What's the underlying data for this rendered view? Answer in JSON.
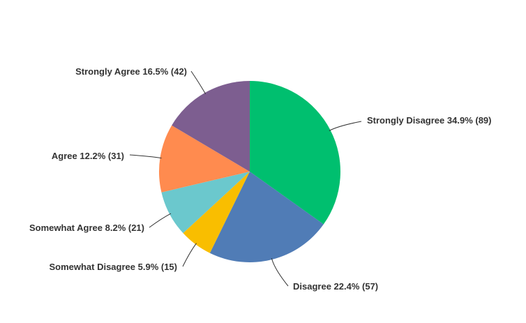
{
  "chart_data": {
    "type": "pie",
    "categories": [
      "Strongly Disagree",
      "Disagree",
      "Somewhat Disagree",
      "Somewhat Agree",
      "Agree",
      "Strongly Agree"
    ],
    "values": [
      34.9,
      22.4,
      5.9,
      8.2,
      12.2,
      16.5
    ],
    "value_labels": [
      "34.9% (89)",
      "22.4% (57)",
      "5.9% (15)",
      "8.2% (21)",
      "12.2% (31)",
      "16.5% (42)"
    ],
    "colors": [
      "#00bf6f",
      "#507cb6",
      "#f9be00",
      "#6bc8cd",
      "#ff8b4f",
      "#7d5e90"
    ]
  }
}
